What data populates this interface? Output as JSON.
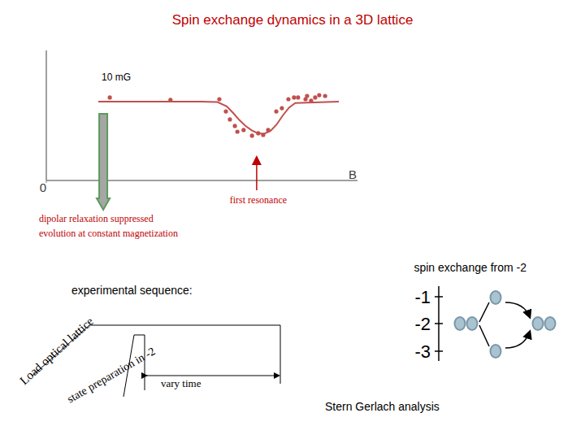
{
  "title": "Spin exchange dynamics in a 3D lattice",
  "chart_data": {
    "type": "scatter",
    "xlabel": "B",
    "xlim": [
      0,
      100
    ],
    "ylim": [
      0,
      100
    ],
    "xticks": [
      0
    ],
    "yticks": [],
    "grid": false,
    "series": [
      {
        "type": "scatter",
        "marker": "circle",
        "color": "#c0504d",
        "x": [
          20.4,
          39.9,
          55.6,
          57.7,
          59.0,
          60.6,
          61.4,
          63.4,
          66.1,
          68.1,
          69.7,
          71.3,
          73.9,
          75.7,
          77.8,
          79.6,
          80.9,
          83.3,
          83.8,
          85.1,
          86.4,
          87.7,
          89.6
        ],
        "values": [
          63.8,
          61.9,
          62.5,
          53.1,
          46.9,
          41.9,
          37.5,
          38.8,
          34.4,
          36.3,
          35.0,
          38.8,
          53.1,
          55.6,
          62.5,
          63.8,
          63.8,
          62.5,
          65.0,
          61.3,
          63.8,
          65.6,
          65.0
        ]
      },
      {
        "type": "line",
        "line_style": "solid",
        "color": "#c0504d",
        "x": [
          16.7,
          50,
          55,
          58,
          60,
          62,
          64,
          66,
          68,
          70,
          72,
          74,
          76,
          78,
          80,
          94
        ],
        "values": [
          60.6,
          60.6,
          60.3,
          57,
          52,
          46.5,
          42,
          38.5,
          36.3,
          36,
          38,
          43,
          50,
          56,
          59.5,
          60.6
        ]
      }
    ],
    "annotations": [
      {
        "text": "10 mG"
      },
      {
        "text": "first resonance",
        "x": 67.6,
        "color": "#c00000"
      },
      {
        "lines": [
          "dipolar relaxation suppressed",
          "evolution at constant magnetization"
        ],
        "x": 18.3,
        "color": "#c00000"
      }
    ]
  },
  "sequence": {
    "label": "experimental sequence:",
    "steps": [
      "Load optical lattice",
      "state preparation in -2",
      "vary time",
      "Stern Gerlach analysis"
    ]
  },
  "levels": {
    "title": "spin exchange from -2",
    "labels": [
      "-1",
      "-2",
      "-3"
    ]
  }
}
